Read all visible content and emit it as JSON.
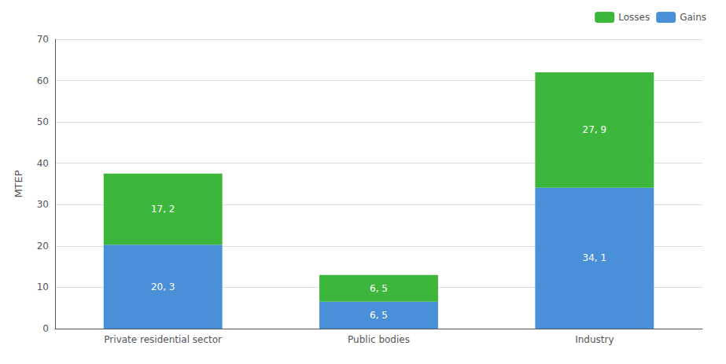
{
  "chart_data": {
    "type": "bar",
    "stacked": true,
    "categories": [
      "Private residential sector",
      "Public bodies",
      "Industry"
    ],
    "series": [
      {
        "name": "Gains",
        "color": "#4a90d9",
        "values": [
          20.3,
          6.5,
          34.1
        ],
        "value_labels": [
          "20, 3",
          "6, 5",
          "34, 1"
        ]
      },
      {
        "name": "Losses",
        "color": "#3cb73c",
        "values": [
          17.2,
          6.5,
          27.9
        ],
        "value_labels": [
          "17, 2",
          "6, 5",
          "27, 9"
        ]
      }
    ],
    "y_label": "MTEP",
    "ylim": [
      0,
      70
    ],
    "yticks": [
      0,
      10,
      20,
      30,
      40,
      50,
      60,
      70
    ],
    "grid": true,
    "legend": "upper right",
    "data_labels": true
  }
}
